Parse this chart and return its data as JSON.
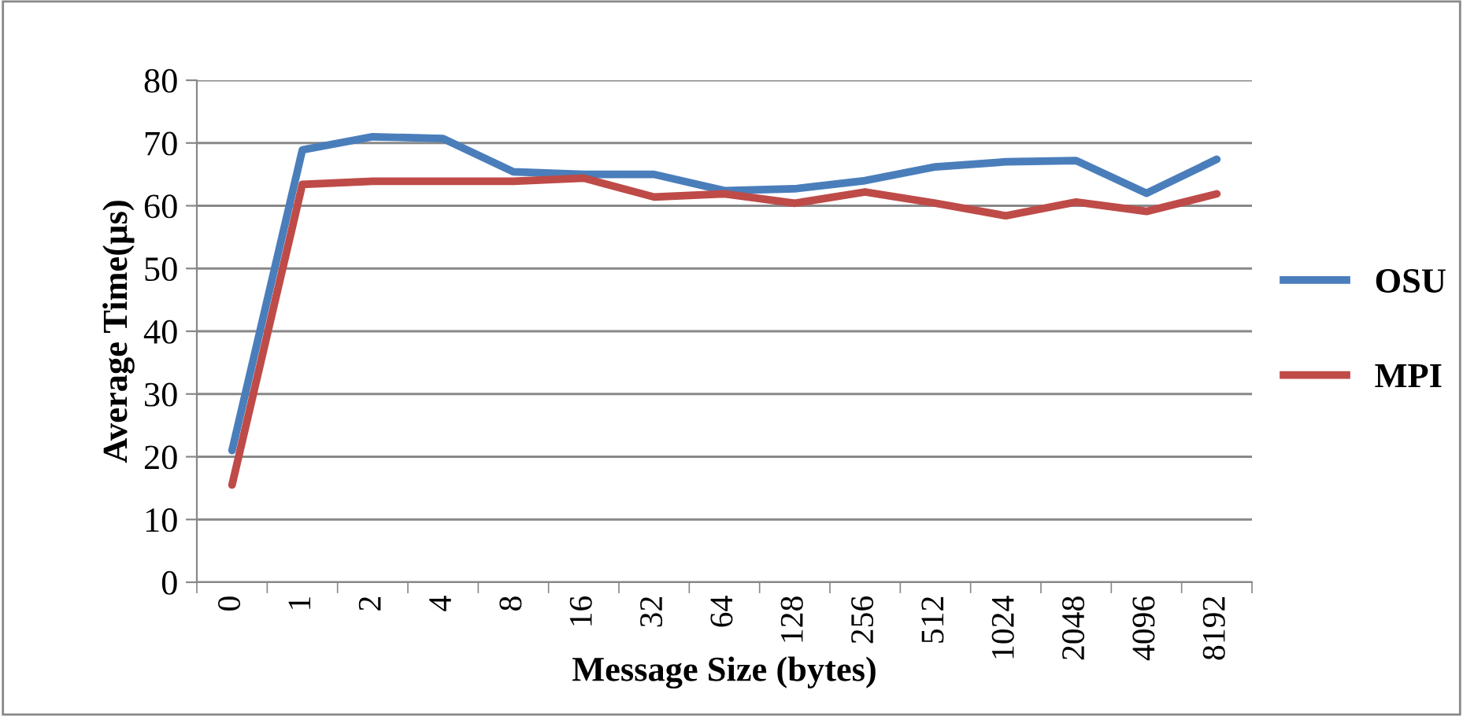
{
  "chart_data": {
    "type": "line",
    "xlabel": "Message Size (bytes)",
    "ylabel": "Average Time(µs)",
    "categories": [
      "0",
      "1",
      "2",
      "4",
      "8",
      "16",
      "32",
      "64",
      "128",
      "256",
      "512",
      "1024",
      "2048",
      "4096",
      "8192"
    ],
    "series": [
      {
        "name": "OSU",
        "color": "#4a7ebb",
        "values": [
          21,
          68.9,
          71,
          70.7,
          65.4,
          65,
          65,
          62.4,
          62.7,
          64,
          66.2,
          67,
          67.2,
          62,
          67.4
        ]
      },
      {
        "name": "MPI",
        "color": "#be4b48",
        "values": [
          15.5,
          63.4,
          63.9,
          63.9,
          63.9,
          64.4,
          61.4,
          61.9,
          60.4,
          62.2,
          60.4,
          58.4,
          60.6,
          59.1,
          61.9
        ]
      }
    ],
    "ylim": [
      0,
      80
    ],
    "yticks": [
      0,
      10,
      20,
      30,
      40,
      50,
      60,
      70,
      80
    ],
    "grid": "y",
    "legend": "right",
    "marker": "none",
    "line_style": "solid"
  }
}
